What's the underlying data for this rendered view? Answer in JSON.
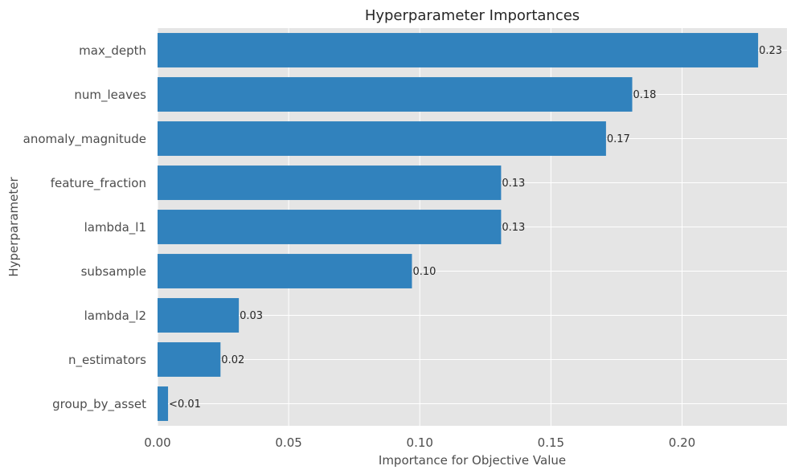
{
  "chart_data": {
    "type": "bar",
    "orientation": "horizontal",
    "title": "Hyperparameter Importances",
    "xlabel": "Importance for Objective Value",
    "ylabel": "Hyperparameter",
    "categories": [
      "max_depth",
      "num_leaves",
      "anomaly_magnitude",
      "feature_fraction",
      "lambda_l1",
      "subsample",
      "lambda_l2",
      "n_estimators",
      "group_by_asset"
    ],
    "values": [
      0.229,
      0.181,
      0.171,
      0.131,
      0.131,
      0.097,
      0.031,
      0.024,
      0.004
    ],
    "data_labels": [
      "0.23",
      "0.18",
      "0.17",
      "0.13",
      "0.13",
      "0.10",
      "0.03",
      "0.02",
      "<0.01"
    ],
    "xlim": [
      0,
      0.24
    ],
    "xticks": [
      0.0,
      0.05,
      0.1,
      0.15,
      0.2
    ],
    "xtick_labels": [
      "0.00",
      "0.05",
      "0.10",
      "0.15",
      "0.20"
    ],
    "grid": true,
    "bar_color": "#3182bd",
    "background_color": "#e5e5e5",
    "grid_color": "#ffffff"
  }
}
